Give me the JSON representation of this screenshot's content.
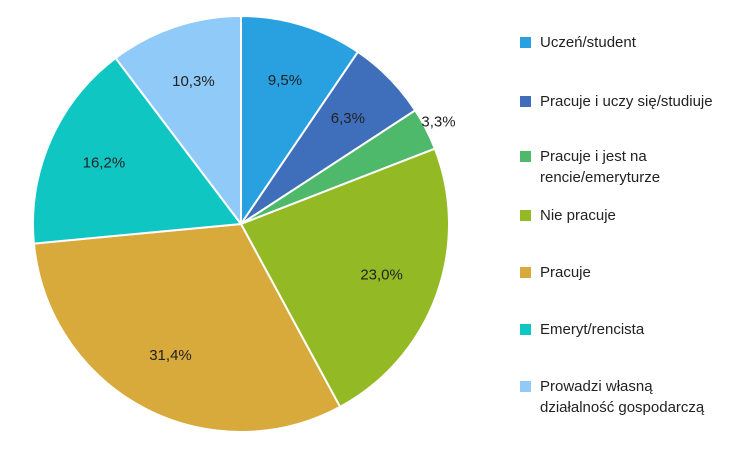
{
  "chart_data": {
    "type": "pie",
    "slices": [
      {
        "label": "Uczeń/student",
        "value": 9.5,
        "value_label": "9,5%",
        "color": "#29a0e0"
      },
      {
        "label": "Pracuje i uczy się/studiuje",
        "value": 6.3,
        "value_label": "6,3%",
        "color": "#3f6fba"
      },
      {
        "label": "Pracuje i jest na rencie/emeryturze",
        "value": 3.3,
        "value_label": "3,3%",
        "color": "#4fb96b"
      },
      {
        "label": "Nie pracuje",
        "value": 23.0,
        "value_label": "23,0%",
        "color": "#93ba24"
      },
      {
        "label": "Pracuje",
        "value": 31.4,
        "value_label": "31,4%",
        "color": "#d8a93b"
      },
      {
        "label": "Emeryt/rencista",
        "value": 16.2,
        "value_label": "16,2%",
        "color": "#10c6c2"
      },
      {
        "label": "Prowadzi własną działalność gospodarczą",
        "value": 10.3,
        "value_label": "10,3%",
        "color": "#8fcaf8"
      }
    ],
    "legend": {
      "placement": "right",
      "items": [
        {
          "lines": [
            "Uczeń/student"
          ],
          "color": "#29a0e0"
        },
        {
          "lines": [
            "Pracuje i uczy się/studiuje"
          ],
          "color": "#3f6fba"
        },
        {
          "lines": [
            "Pracuje i jest na",
            "rencie/emeryturze"
          ],
          "color": "#4fb96b"
        },
        {
          "lines": [
            "Nie pracuje"
          ],
          "color": "#93ba24"
        },
        {
          "lines": [
            "Pracuje"
          ],
          "color": "#d8a93b"
        },
        {
          "lines": [
            "Emeryt/rencista"
          ],
          "color": "#10c6c2"
        },
        {
          "lines": [
            "Prowadzi własną",
            "działalność gospodarczą"
          ],
          "color": "#8fcaf8"
        }
      ]
    }
  }
}
